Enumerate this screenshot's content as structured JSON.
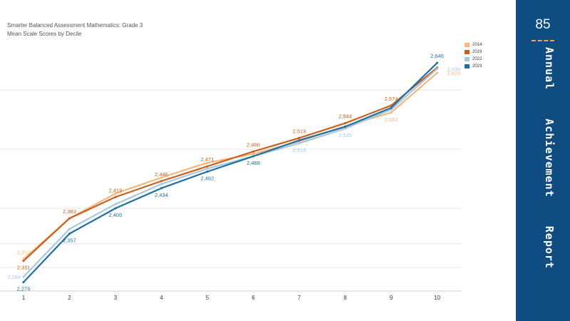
{
  "page": {
    "number": "85",
    "report_title": "Annual    Achievement    Report"
  },
  "colors": {
    "panel": "#0f4c81",
    "accent": "#f2a25a",
    "gridline": "#e6e6e6"
  },
  "chart_data": {
    "type": "line",
    "title": "Smarter Balanced Assessment Mathematics: Grade 3",
    "subtitle": "Mean Scale Scores by Decile",
    "xlabel": "",
    "ylabel": "",
    "categories": [
      "1",
      "2",
      "3",
      "4",
      "5",
      "6",
      "7",
      "8",
      "9",
      "10"
    ],
    "ylim": [
      2260,
      2680
    ],
    "yticks": [
      2300,
      2340,
      2400,
      2500,
      2600
    ],
    "y_tick_labels_shown": false,
    "grid": true,
    "legend_position": "top-right",
    "series": [
      {
        "name": "2014",
        "color": "#f5b77d",
        "values": [
          2314,
          2383,
          2425,
          2452,
          2477,
          2492,
          2513,
          2539,
          2562,
          2629
        ]
      },
      {
        "name": "2019",
        "color": "#c8611f",
        "values": [
          2311,
          2383,
          2419,
          2446,
          2471,
          2496,
          2519,
          2544,
          2574,
          2638
        ]
      },
      {
        "name": "2022",
        "color": "#a7c8e3",
        "values": [
          2284,
          2365,
          2407,
          2441,
          2467,
          2488,
          2510,
          2535,
          2567,
          2636
        ]
      },
      {
        "name": "2023",
        "color": "#1f6fa0",
        "values": [
          2275,
          2357,
          2400,
          2434,
          2462,
          2488,
          2515,
          2538,
          2570,
          2646
        ]
      }
    ],
    "data_labels": [
      {
        "series": "2014",
        "index": 0,
        "text": "2,314",
        "placement": "above"
      },
      {
        "series": "2019",
        "index": 0,
        "text": "2,311",
        "placement": "below"
      },
      {
        "series": "2022",
        "index": 0,
        "text": "2,284",
        "placement": "left"
      },
      {
        "series": "2023",
        "index": 0,
        "text": "2,275",
        "placement": "below"
      },
      {
        "series": "2019",
        "index": 1,
        "text": "2,383",
        "placement": "above"
      },
      {
        "series": "2023",
        "index": 1,
        "text": "2,357",
        "placement": "below"
      },
      {
        "series": "2019",
        "index": 2,
        "text": "2,419",
        "placement": "above"
      },
      {
        "series": "2023",
        "index": 2,
        "text": "2,400",
        "placement": "below"
      },
      {
        "series": "2019",
        "index": 3,
        "text": "2,446",
        "placement": "above"
      },
      {
        "series": "2023",
        "index": 3,
        "text": "2,434",
        "placement": "below"
      },
      {
        "series": "2019",
        "index": 4,
        "text": "2,471",
        "placement": "above"
      },
      {
        "series": "2023",
        "index": 4,
        "text": "2,462",
        "placement": "below"
      },
      {
        "series": "2019",
        "index": 5,
        "text": "2,496",
        "placement": "above"
      },
      {
        "series": "2023",
        "index": 5,
        "text": "2,488",
        "placement": "below"
      },
      {
        "series": "2019",
        "index": 6,
        "text": "2,519",
        "placement": "above"
      },
      {
        "series": "2022",
        "index": 6,
        "text": "2,510",
        "placement": "below"
      },
      {
        "series": "2019",
        "index": 7,
        "text": "2,544",
        "placement": "above"
      },
      {
        "series": "2022",
        "index": 7,
        "text": "2,535",
        "placement": "below"
      },
      {
        "series": "2019",
        "index": 8,
        "text": "2,574",
        "placement": "above"
      },
      {
        "series": "2014",
        "index": 8,
        "text": "2,562",
        "placement": "below"
      },
      {
        "series": "2023",
        "index": 9,
        "text": "2,646",
        "placement": "above"
      },
      {
        "series": "2022",
        "index": 9,
        "text": "2,636",
        "placement": "right"
      },
      {
        "series": "2014",
        "index": 9,
        "text": "2,629",
        "placement": "right"
      }
    ]
  }
}
